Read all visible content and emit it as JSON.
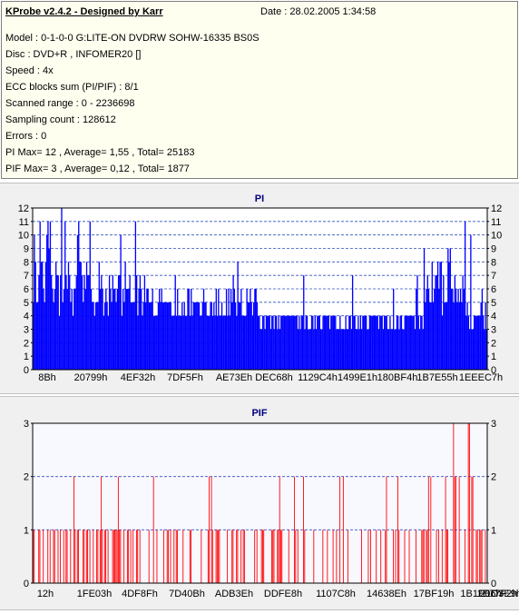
{
  "header": {
    "title": "KProbe v2.4.2 - Designed by Karr",
    "date": "Date : 28.02.2005 1:34:58",
    "lines": [
      "Model : 0-1-0-0 G:LITE-ON DVDRW SOHW-16335 BS0S",
      "Disc : DVD+R , INFOMER20 []",
      "Speed : 4x",
      "ECC blocks sum (PI/PIF) : 8/1",
      "Scanned range : 0 - 2236698",
      "Sampling count : 128612",
      "Errors : 0",
      "PI Max= 12 , Average= 1,55 , Total= 25183",
      "PIF Max= 3 , Average= 0,12 , Total= 1877"
    ]
  },
  "chart_data": [
    {
      "type": "bar",
      "title": "PI",
      "color": "#0000ff",
      "ylim": [
        0,
        12
      ],
      "yticks": [
        0,
        1,
        2,
        3,
        4,
        5,
        6,
        7,
        8,
        9,
        10,
        11,
        12
      ],
      "xticks": [
        "8Bh",
        "20799h",
        "4EF32h",
        "7DF5Fh",
        "AE73Eh",
        "DEC68h",
        "1129C4h",
        "1499E1h",
        "180BF4h",
        "1B7E55h",
        "1EEEC7h"
      ],
      "grid": true,
      "sample_count": 400,
      "max": 12,
      "average": 1.55
    },
    {
      "type": "bar",
      "title": "PIF",
      "color": "#ff0000",
      "ylim": [
        0,
        3
      ],
      "yticks": [
        0,
        1,
        2,
        3
      ],
      "xticks": [
        "12h",
        "1FE03h",
        "4DF8Fh",
        "7D40Bh",
        "ADB3Eh",
        "DDFE8h",
        "1107C8h",
        "14638Eh",
        "17BF19h",
        "1B1E06h",
        "1E77F2h",
        "21D3E9h"
      ],
      "grid": true,
      "sample_count": 400,
      "max": 3,
      "average": 0.12
    }
  ]
}
